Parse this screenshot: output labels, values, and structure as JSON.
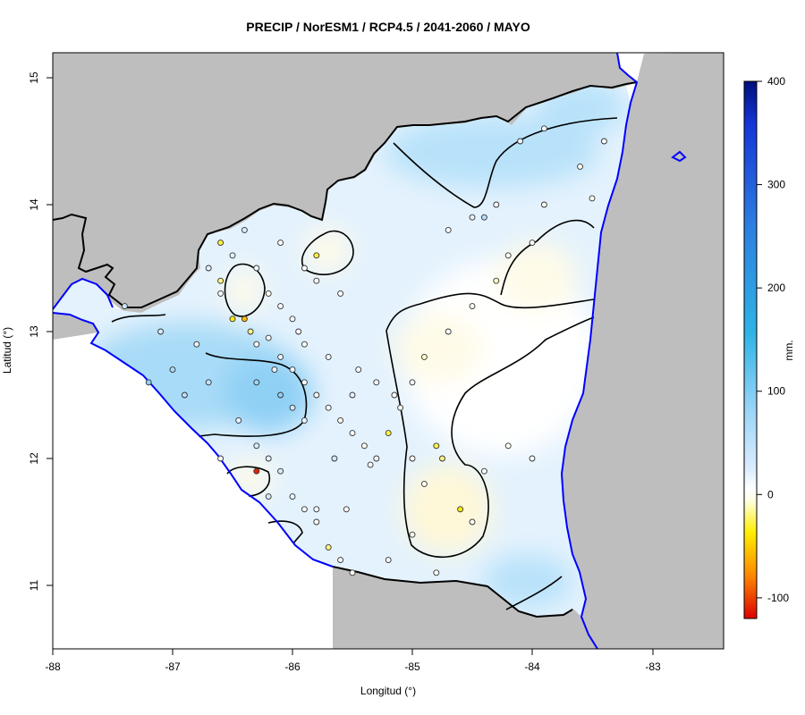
{
  "title": "PRECIP / NorESM1 / RCP4.5 / 2041-2060 / MAYO",
  "xlabel": "Longitud (°)",
  "ylabel": "Latitud (°)",
  "x_ticks": [
    "-88",
    "-87",
    "-86",
    "-85",
    "-84",
    "-83"
  ],
  "y_ticks": [
    "15",
    "14",
    "13",
    "12",
    "11"
  ],
  "colorbar": {
    "label": "mm.",
    "ticks": [
      "400",
      "300",
      "200",
      "100",
      "0",
      "-100"
    ],
    "range": [
      -120,
      400
    ],
    "colors": [
      "#dd0000",
      "#ff8800",
      "#ffee00",
      "#ffffe6",
      "#ffffff",
      "#d8ecff",
      "#9fd6f8",
      "#2fb4e6",
      "#2d7fe0",
      "#1536d8",
      "#00107a"
    ]
  },
  "colors": {
    "land_outside": "#bebebe",
    "border": "#000000",
    "coast": "#0000ff"
  },
  "chart_data": {
    "type": "heatmap",
    "title": "PRECIP / NorESM1 / RCP4.5 / 2041-2060 / MAYO",
    "xlabel": "Longitud (°)",
    "ylabel": "Latitud (°)",
    "xlim": [
      -88,
      -82.4
    ],
    "ylim": [
      10.5,
      15.2
    ],
    "zlim": [
      -120,
      400
    ],
    "colorbar_label": "mm."
  }
}
